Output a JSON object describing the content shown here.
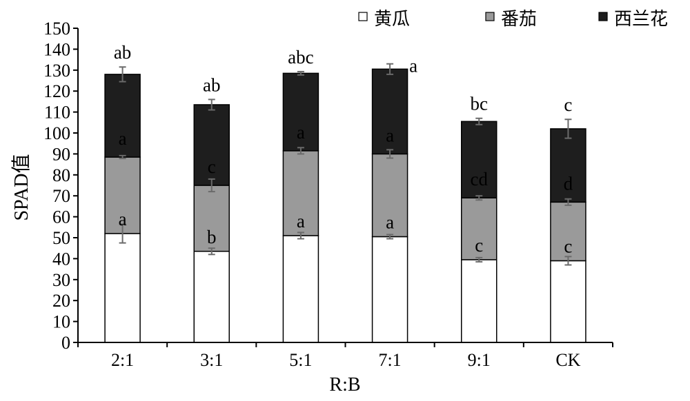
{
  "chart_data": {
    "type": "bar",
    "stacked": true,
    "xlabel": "R:B",
    "ylabel": "SPAD值",
    "ylim": [
      0,
      150
    ],
    "ytick_step": 10,
    "grid": false,
    "legend_position": "top-right",
    "categories": [
      "2:1",
      "3:1",
      "5:1",
      "7:1",
      "9:1",
      "CK"
    ],
    "series": [
      {
        "name": "黄瓜",
        "color": "#ffffff",
        "values": [
          52,
          43.5,
          51,
          50.5,
          39.5,
          39
        ],
        "errors": [
          4.5,
          1.5,
          1.5,
          1.0,
          1.0,
          2.0
        ],
        "labels": [
          "a",
          "b",
          "a",
          "a",
          "c",
          "c"
        ]
      },
      {
        "name": "番茄",
        "color": "#9a9a9a",
        "values": [
          36.5,
          31.5,
          40.5,
          39.5,
          29.5,
          28
        ],
        "errors": [
          0.7,
          3.0,
          1.5,
          2.0,
          1.0,
          1.5
        ],
        "labels": [
          "a",
          "c",
          "a",
          "a",
          "cd",
          "d"
        ]
      },
      {
        "name": "西兰花",
        "color": "#1e1e1e",
        "values": [
          39.5,
          38.5,
          37,
          40.5,
          36.5,
          35
        ],
        "errors": [
          3.5,
          2.5,
          0.8,
          2.5,
          1.5,
          4.5
        ],
        "labels": [
          "ab",
          "ab",
          "abc",
          "a",
          "bc",
          "c"
        ]
      }
    ]
  }
}
